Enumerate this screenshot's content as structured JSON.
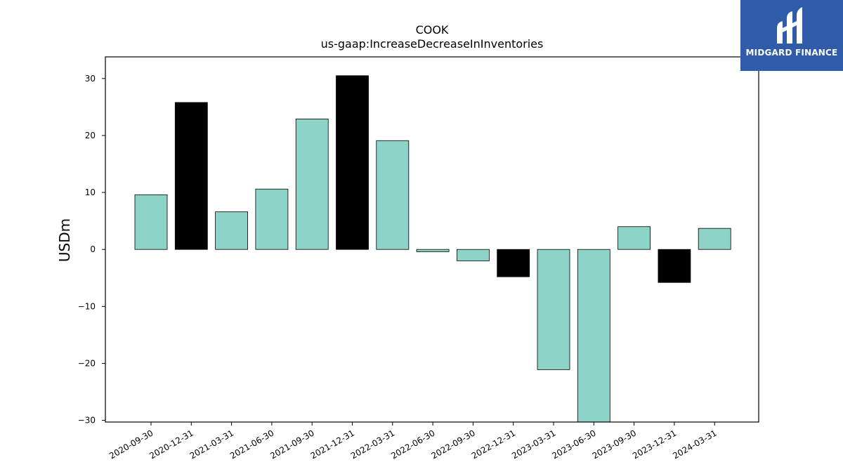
{
  "chart_data": {
    "type": "bar",
    "title": "COOK",
    "subtitle": "us-gaap:IncreaseDecreaseInInventories",
    "xlabel": "",
    "ylabel": "USDm",
    "ylim": [
      -30.3,
      33.8
    ],
    "yticks": [
      30,
      20,
      10,
      0,
      -10,
      -20,
      -30
    ],
    "ytick_labels": [
      "30",
      "20",
      "10",
      "0",
      "−10",
      "−20",
      "−30"
    ],
    "grid": false,
    "categories": [
      "2020-09-30",
      "2020-12-31",
      "2021-03-31",
      "2021-06-30",
      "2021-09-30",
      "2021-12-31",
      "2022-03-31",
      "2022-06-30",
      "2022-09-30",
      "2022-12-31",
      "2023-03-31",
      "2023-06-30",
      "2023-09-30",
      "2023-12-31",
      "2024-03-31"
    ],
    "values": [
      9.6,
      25.8,
      6.6,
      10.6,
      22.9,
      30.5,
      19.1,
      -0.4,
      -2.0,
      -4.8,
      -21.1,
      -30.3,
      4.0,
      -5.8,
      3.7
    ],
    "highlight": [
      false,
      true,
      false,
      false,
      false,
      true,
      false,
      false,
      false,
      true,
      false,
      false,
      false,
      true,
      false
    ],
    "colors": {
      "normal": "#8dd3c7",
      "highlight": "#000000",
      "edge": "#000000"
    }
  },
  "logo": {
    "text": "MIDGARD FINANCE",
    "background": "#2f5ba8"
  }
}
